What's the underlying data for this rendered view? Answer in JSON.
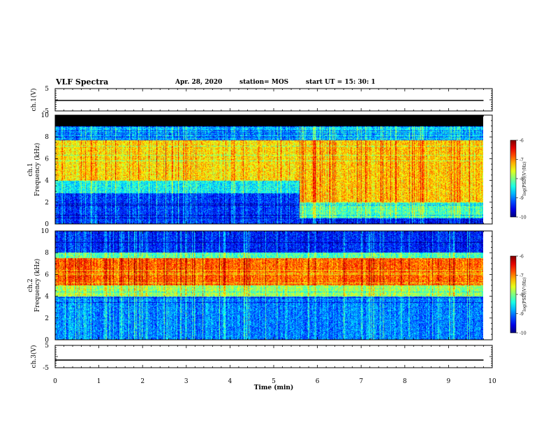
{
  "header": {
    "title": "VLF Spectra",
    "date": "Apr. 28, 2020",
    "station": "station= MOS",
    "start": "start  UT =   15: 30: 1"
  },
  "chart_data": [
    {
      "type": "line",
      "panel": "ch1-waveform",
      "ylabel": "ch.1(V)",
      "ylim": [
        -5,
        5
      ],
      "y_ticks": [
        "5",
        "-5"
      ],
      "series": [
        {
          "values": [
            -0.3,
            -0.3,
            -0.3,
            -0.3,
            -0.3,
            -0.3,
            -0.3,
            -0.3,
            -0.3,
            -0.3,
            -0.3
          ]
        }
      ]
    },
    {
      "type": "heatmap",
      "panel": "ch1-spectrogram",
      "ylabel_lines": [
        "ch.1",
        "Frequency  (kHz)"
      ],
      "ylim": [
        0,
        10
      ],
      "y_ticks": [
        "0",
        "2",
        "4",
        "6",
        "8",
        "10"
      ],
      "colorbar": {
        "label": "log(PSD)(V²/Hz)",
        "ticks": [
          "-6",
          "-7",
          "-8",
          "-9",
          "-10"
        ],
        "range": [
          -10,
          -6
        ]
      },
      "bands": [
        {
          "t0": 0.0,
          "t1": 5.6,
          "f0": 9.0,
          "f1": 10.0,
          "level": -10.8
        },
        {
          "t0": 0.0,
          "t1": 5.6,
          "f0": 7.7,
          "f1": 9.0,
          "level": -8.8
        },
        {
          "t0": 0.0,
          "t1": 5.6,
          "f0": 4.0,
          "f1": 7.7,
          "level": -7.4
        },
        {
          "t0": 0.0,
          "t1": 5.6,
          "f0": 2.8,
          "f1": 4.0,
          "level": -8.5
        },
        {
          "t0": 0.0,
          "t1": 5.6,
          "f0": 0.0,
          "f1": 2.8,
          "level": -9.3
        },
        {
          "t0": 5.6,
          "t1": 9.8,
          "f0": 9.0,
          "f1": 10.0,
          "level": -10.8
        },
        {
          "t0": 5.6,
          "t1": 9.8,
          "f0": 7.7,
          "f1": 9.0,
          "level": -8.6
        },
        {
          "t0": 5.6,
          "t1": 9.8,
          "f0": 2.0,
          "f1": 7.7,
          "level": -7.3
        },
        {
          "t0": 5.6,
          "t1": 9.8,
          "f0": 0.5,
          "f1": 2.0,
          "level": -8.2
        },
        {
          "t0": 5.6,
          "t1": 9.8,
          "f0": 0.0,
          "f1": 0.5,
          "level": -9.5
        }
      ]
    },
    {
      "type": "heatmap",
      "panel": "ch2-spectrogram",
      "ylabel_lines": [
        "ch.2",
        "Frequency  (kHz)"
      ],
      "ylim": [
        0,
        10
      ],
      "y_ticks": [
        "0",
        "2",
        "4",
        "6",
        "8",
        "10"
      ],
      "colorbar": {
        "label": "log(PSD)(V²/Hz)",
        "ticks": [
          "-6",
          "-7",
          "-8",
          "-9",
          "-10"
        ],
        "range": [
          -10,
          -6
        ]
      },
      "bands": [
        {
          "t0": 0.0,
          "t1": 9.8,
          "f0": 8.0,
          "f1": 10.0,
          "level": -9.4
        },
        {
          "t0": 0.0,
          "t1": 9.8,
          "f0": 7.5,
          "f1": 8.0,
          "level": -8.2
        },
        {
          "t0": 0.0,
          "t1": 9.8,
          "f0": 5.0,
          "f1": 7.5,
          "level": -6.9
        },
        {
          "t0": 0.0,
          "t1": 9.8,
          "f0": 4.0,
          "f1": 5.0,
          "level": -7.9
        },
        {
          "t0": 0.0,
          "t1": 9.8,
          "f0": 0.0,
          "f1": 4.0,
          "level": -9.0
        }
      ]
    },
    {
      "type": "line",
      "panel": "ch3-waveform",
      "ylabel": "ch.3(V)",
      "ylim": [
        -5,
        5
      ],
      "y_ticks": [
        "5",
        "-5"
      ],
      "series": [
        {
          "values": [
            -1.6,
            -1.6,
            -1.6,
            -1.6,
            -1.6,
            -1.6,
            -1.6,
            -1.6,
            -1.6,
            -1.6,
            -1.6
          ]
        }
      ]
    }
  ],
  "x_axis": {
    "label": "Time  (min)",
    "ticks": [
      "0",
      "1",
      "2",
      "3",
      "4",
      "5",
      "6",
      "7",
      "8",
      "9",
      "10"
    ],
    "range": [
      0,
      10
    ],
    "data_end": 9.8
  }
}
